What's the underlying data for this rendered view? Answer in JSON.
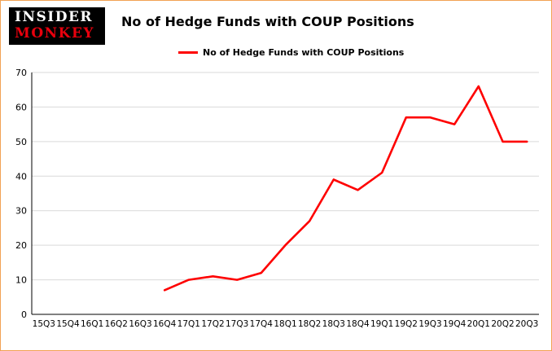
{
  "logo": {
    "line1": "INSIDER",
    "line2": "MONKEY"
  },
  "header": {
    "title": "No of Hedge Funds with COUP Positions"
  },
  "legend": {
    "label": "No of Hedge Funds with COUP Positions"
  },
  "colors": {
    "line": "#fe0000",
    "grid": "#d9d9d9",
    "axis": "#000000",
    "frame_border": "#f2a254",
    "logo_bg": "#000000",
    "logo_red": "#e8000d"
  },
  "chart_data": {
    "type": "line",
    "title": "No of Hedge Funds with COUP Positions",
    "xlabel": "",
    "ylabel": "",
    "ylim": [
      0,
      70
    ],
    "y_ticks": [
      0,
      10,
      20,
      30,
      40,
      50,
      60,
      70
    ],
    "grid": "horizontal",
    "legend_position": "top",
    "categories": [
      "15Q3",
      "15Q4",
      "16Q1",
      "16Q2",
      "16Q3",
      "16Q4",
      "17Q1",
      "17Q2",
      "17Q3",
      "17Q4",
      "18Q1",
      "18Q2",
      "18Q3",
      "18Q4",
      "19Q1",
      "19Q2",
      "19Q3",
      "19Q4",
      "20Q1",
      "20Q2",
      "20Q3"
    ],
    "series": [
      {
        "name": "No of Hedge Funds with COUP Positions",
        "color": "#fe0000",
        "values": [
          null,
          null,
          null,
          null,
          null,
          7,
          10,
          11,
          10,
          12,
          20,
          27,
          39,
          36,
          41,
          57,
          57,
          55,
          66,
          50,
          50
        ]
      }
    ]
  }
}
